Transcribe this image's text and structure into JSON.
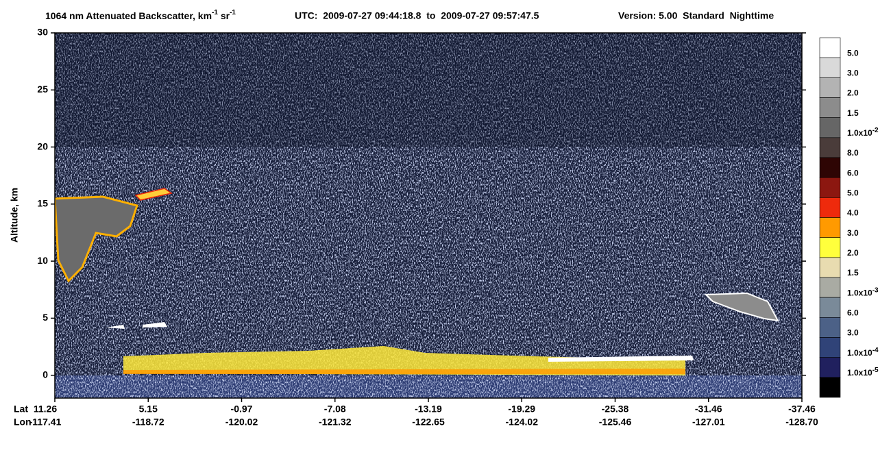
{
  "chart_data": {
    "type": "heatmap",
    "title_parts": [
      "1064 nm Attenuated Backscatter, km",
      "-1",
      " sr",
      "-1"
    ],
    "utc": "UTC:  2009-07-27 09:44:18.8  to  2009-07-27 09:57:47.5",
    "version": "Version: 5.00  Standard  Nighttime",
    "ylabel": "Altitude, km",
    "ylim": [
      -2,
      30
    ],
    "yticks": [
      0,
      5,
      10,
      15,
      20,
      25,
      30
    ],
    "lat_label": "Lat",
    "lon_label": "Lon",
    "lat": [
      "11.26",
      "5.15",
      "-0.97",
      "-7.08",
      "-13.19",
      "-19.29",
      "-25.38",
      "-31.46",
      "-37.46"
    ],
    "lon": [
      "-117.41",
      "-118.72",
      "-120.02",
      "-121.32",
      "-122.65",
      "-124.02",
      "-125.46",
      "-127.01",
      "-128.70"
    ],
    "colorbar": {
      "colors": [
        "#ffffff",
        "#d9d9d9",
        "#b3b3b3",
        "#8c8c8c",
        "#666666",
        "#4a3c3a",
        "#2e0504",
        "#8c1710",
        "#ee2a0c",
        "#ff9a00",
        "#ffff3c",
        "#e8dcb0",
        "#a9aba3",
        "#7a8a99",
        "#4c6187",
        "#304378",
        "#20205e",
        "#000000"
      ],
      "labels": [
        {
          "label": "5.0"
        },
        {
          "label": "3.0"
        },
        {
          "label": "2.0"
        },
        {
          "label": "1.5"
        },
        {
          "label": "1.0x10",
          "exponent": "-2"
        },
        {
          "label": "8.0"
        },
        {
          "label": "6.0"
        },
        {
          "label": "5.0"
        },
        {
          "label": "4.0"
        },
        {
          "label": "3.0"
        },
        {
          "label": "2.0"
        },
        {
          "label": "1.5"
        },
        {
          "label": "1.0x10",
          "exponent": "-3"
        },
        {
          "label": "6.0"
        },
        {
          "label": "3.0"
        },
        {
          "label": "1.0x10",
          "exponent": "-4"
        },
        {
          "label": "1.0x10",
          "exponent": "-5"
        }
      ]
    }
  }
}
